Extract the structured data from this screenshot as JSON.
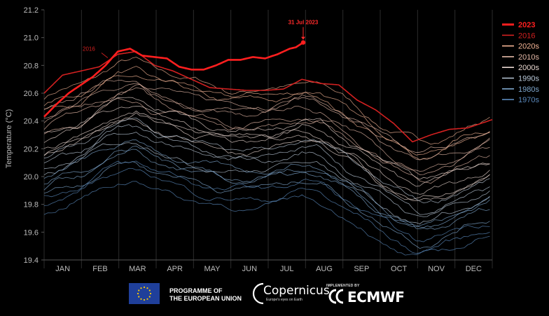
{
  "chart_data": {
    "type": "line",
    "ylabel": "Temperature (°C)",
    "xlabel": "",
    "ylim": [
      19.4,
      21.2
    ],
    "yticks": [
      "19.4",
      "19.6",
      "19.8",
      "20.0",
      "20.2",
      "20.4",
      "20.6",
      "20.8",
      "21.0",
      "21.2"
    ],
    "months": [
      "JAN",
      "FEB",
      "MAR",
      "APR",
      "MAY",
      "JUN",
      "JUL",
      "AUG",
      "SEP",
      "OCT",
      "NOV",
      "DEC"
    ],
    "grid": "vertical",
    "legend_position": "right",
    "legend": [
      {
        "name": "2023",
        "color": "#ff1f1f"
      },
      {
        "name": "2016",
        "color": "#d22020"
      },
      {
        "name": "2020s",
        "color": "#f4b494"
      },
      {
        "name": "2010s",
        "color": "#e3b7a6"
      },
      {
        "name": "2000s",
        "color": "#e8d6cf"
      },
      {
        "name": "1990s",
        "color": "#b9c8d8"
      },
      {
        "name": "1980s",
        "color": "#7ea6cc"
      },
      {
        "name": "1970s",
        "color": "#5a88bb"
      }
    ],
    "annotations": [
      {
        "text": "31 Jul 2023",
        "x": 211,
        "y": 20.965,
        "color": "#ff2a2a"
      },
      {
        "text": "2016",
        "x": 45,
        "y": 20.9,
        "color": "#d22020"
      }
    ],
    "series": [
      {
        "name": "2023",
        "color": "#ff1f1f",
        "x": [
          0,
          10,
          20,
          30,
          40,
          50,
          60,
          70,
          80,
          90,
          100,
          110,
          120,
          130,
          140,
          150,
          160,
          170,
          180,
          190,
          200,
          205,
          211
        ],
        "values": [
          20.43,
          20.52,
          20.6,
          20.66,
          20.72,
          20.8,
          20.9,
          20.92,
          20.87,
          20.86,
          20.85,
          20.79,
          20.77,
          20.77,
          20.8,
          20.84,
          20.84,
          20.86,
          20.85,
          20.88,
          20.92,
          20.93,
          20.965
        ]
      },
      {
        "name": "2016",
        "color": "#d22020",
        "x": [
          0,
          15,
          30,
          45,
          60,
          75,
          90,
          105,
          120,
          135,
          150,
          165,
          180,
          195,
          210,
          225,
          240,
          255,
          270,
          285,
          300,
          315,
          330,
          345,
          365
        ],
        "values": [
          20.6,
          20.73,
          20.76,
          20.79,
          20.88,
          20.9,
          20.8,
          20.76,
          20.7,
          20.64,
          20.63,
          20.62,
          20.62,
          20.63,
          20.7,
          20.67,
          20.66,
          20.55,
          20.48,
          20.38,
          20.25,
          20.3,
          20.34,
          20.35,
          20.41
        ]
      }
    ],
    "background_series": [
      {
        "decade": "2020s",
        "color": "#f4b494",
        "offset": 0.02
      },
      {
        "decade": "2020s",
        "color": "#f4b494",
        "offset": -0.04
      },
      {
        "decade": "2020s",
        "color": "#f4b494",
        "offset": -0.08
      },
      {
        "decade": "2010s",
        "color": "#e3b7a6",
        "offset": -0.08
      },
      {
        "decade": "2010s",
        "color": "#e3b7a6",
        "offset": -0.12
      },
      {
        "decade": "2010s",
        "color": "#e3b7a6",
        "offset": -0.16
      },
      {
        "decade": "2010s",
        "color": "#e3b7a6",
        "offset": -0.2
      },
      {
        "decade": "2010s",
        "color": "#e3b7a6",
        "offset": -0.24
      },
      {
        "decade": "2000s",
        "color": "#e8d6cf",
        "offset": -0.26
      },
      {
        "decade": "2000s",
        "color": "#e8d6cf",
        "offset": -0.3
      },
      {
        "decade": "2000s",
        "color": "#e8d6cf",
        "offset": -0.34
      },
      {
        "decade": "2000s",
        "color": "#e8d6cf",
        "offset": -0.37
      },
      {
        "decade": "2000s",
        "color": "#e8d6cf",
        "offset": -0.4
      },
      {
        "decade": "1990s",
        "color": "#b9c8d8",
        "offset": -0.42
      },
      {
        "decade": "1990s",
        "color": "#b9c8d8",
        "offset": -0.46
      },
      {
        "decade": "1990s",
        "color": "#b9c8d8",
        "offset": -0.5
      },
      {
        "decade": "1990s",
        "color": "#b9c8d8",
        "offset": -0.54
      },
      {
        "decade": "1980s",
        "color": "#7ea6cc",
        "offset": -0.56
      },
      {
        "decade": "1980s",
        "color": "#7ea6cc",
        "offset": -0.6
      },
      {
        "decade": "1980s",
        "color": "#7ea6cc",
        "offset": -0.64
      },
      {
        "decade": "1980s",
        "color": "#7ea6cc",
        "offset": -0.68
      },
      {
        "decade": "1970s",
        "color": "#5a88bb",
        "offset": -0.7
      },
      {
        "decade": "1970s",
        "color": "#5a88bb",
        "offset": -0.76
      },
      {
        "decade": "1970s",
        "color": "#5a88bb",
        "offset": -0.82
      }
    ],
    "climatology_profile": {
      "x": [
        0,
        30,
        60,
        75,
        90,
        120,
        150,
        170,
        190,
        210,
        225,
        240,
        260,
        275,
        290,
        305,
        320,
        335,
        350,
        365
      ],
      "values": [
        20.55,
        20.65,
        20.78,
        20.8,
        20.74,
        20.66,
        20.6,
        20.6,
        20.62,
        20.66,
        20.64,
        20.56,
        20.45,
        20.35,
        20.28,
        20.22,
        20.25,
        20.3,
        20.35,
        20.4
      ]
    }
  },
  "footer": {
    "eu_line1": "PROGRAMME OF",
    "eu_line2": "THE EUROPEAN UNION",
    "copernicus_word": "Copernicus",
    "copernicus_tag": "Europe's eyes on Earth",
    "ecmwf_implemented": "IMPLEMENTED BY",
    "ecmwf_word": "ECMWF"
  }
}
